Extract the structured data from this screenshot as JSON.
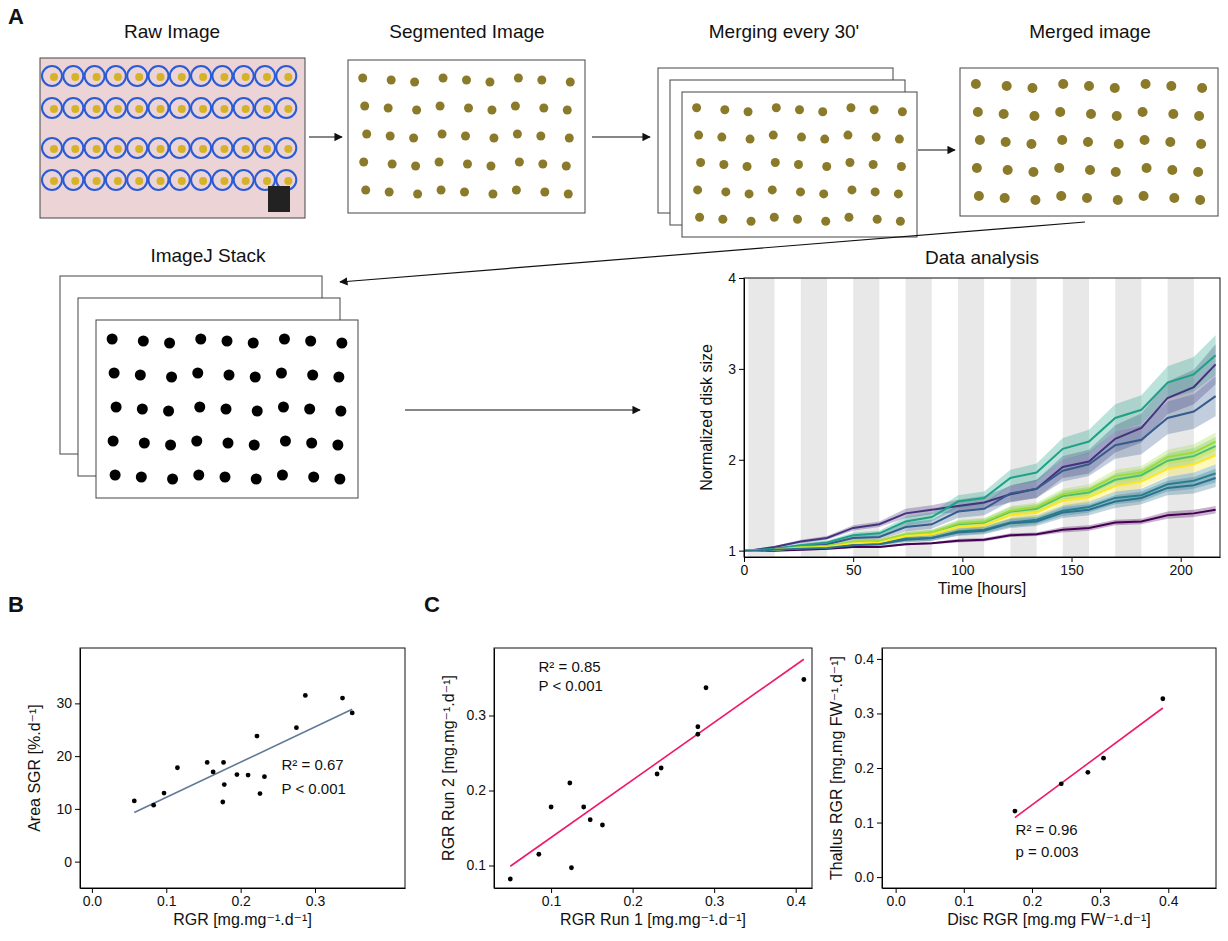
{
  "diagram": {
    "panel_letters": [
      "A",
      "B",
      "C"
    ],
    "steps": [
      "Raw Image",
      "Segmented Image",
      "Merging every 30'",
      "Merged image",
      "ImageJ Stack"
    ]
  },
  "chart_data": [
    {
      "type": "line",
      "title": "Data analysis",
      "x_label": "Time [hours]",
      "y_label": "Normalized disk size",
      "x": [
        0,
        2,
        14,
        26,
        38,
        50,
        62,
        74,
        86,
        98,
        110,
        122,
        134,
        146,
        158,
        170,
        182,
        194,
        206,
        216
      ],
      "shaded_intervals": [
        [
          2,
          14
        ],
        [
          26,
          38
        ],
        [
          50,
          62
        ],
        [
          74,
          86
        ],
        [
          98,
          110
        ],
        [
          122,
          134
        ],
        [
          146,
          158
        ],
        [
          170,
          182
        ],
        [
          194,
          206
        ]
      ],
      "series": [
        {
          "color": "#440154",
          "values": [
            1,
            1,
            1.0,
            1.01,
            1.02,
            1.04,
            1.04,
            1.07,
            1.08,
            1.11,
            1.12,
            1.17,
            1.18,
            1.23,
            1.25,
            1.31,
            1.32,
            1.39,
            1.41,
            1.45
          ],
          "errors": [
            0,
            0,
            0,
            0.01,
            0.01,
            0.01,
            0.01,
            0.01,
            0.01,
            0.02,
            0.02,
            0.02,
            0.02,
            0.03,
            0.03,
            0.03,
            0.03,
            0.04,
            0.04,
            0.04
          ]
        },
        {
          "color": "#46327e",
          "values": [
            1,
            1,
            1.04,
            1.1,
            1.14,
            1.25,
            1.29,
            1.41,
            1.45,
            1.49,
            1.53,
            1.62,
            1.68,
            1.92,
            1.98,
            2.23,
            2.35,
            2.68,
            2.8,
            3.05
          ],
          "errors": [
            0,
            0,
            0.01,
            0.02,
            0.02,
            0.03,
            0.03,
            0.05,
            0.05,
            0.07,
            0.07,
            0.09,
            0.1,
            0.12,
            0.13,
            0.15,
            0.16,
            0.18,
            0.19,
            0.22
          ]
        },
        {
          "color": "#365c8d",
          "values": [
            1,
            1,
            1.02,
            1.05,
            1.07,
            1.14,
            1.15,
            1.26,
            1.29,
            1.43,
            1.46,
            1.63,
            1.68,
            1.88,
            1.95,
            2.16,
            2.22,
            2.46,
            2.53,
            2.7
          ],
          "errors": [
            0,
            0,
            0.01,
            0.02,
            0.02,
            0.03,
            0.03,
            0.05,
            0.05,
            0.07,
            0.07,
            0.09,
            0.1,
            0.12,
            0.13,
            0.15,
            0.16,
            0.18,
            0.19,
            0.22
          ]
        },
        {
          "color": "#277f8e",
          "values": [
            1,
            1,
            1.01,
            1.03,
            1.03,
            1.07,
            1.08,
            1.13,
            1.14,
            1.21,
            1.23,
            1.31,
            1.34,
            1.44,
            1.48,
            1.58,
            1.61,
            1.73,
            1.77,
            1.85
          ],
          "errors": [
            0,
            0,
            0.01,
            0.01,
            0.01,
            0.02,
            0.02,
            0.03,
            0.03,
            0.04,
            0.04,
            0.05,
            0.05,
            0.06,
            0.06,
            0.07,
            0.07,
            0.08,
            0.09,
            0.1
          ]
        },
        {
          "color": "#1fa187",
          "values": [
            1,
            1,
            1.02,
            1.06,
            1.09,
            1.17,
            1.19,
            1.32,
            1.37,
            1.54,
            1.58,
            1.8,
            1.86,
            2.12,
            2.2,
            2.46,
            2.55,
            2.85,
            2.94,
            3.15
          ],
          "errors": [
            0,
            0,
            0.01,
            0.02,
            0.02,
            0.03,
            0.03,
            0.05,
            0.05,
            0.07,
            0.07,
            0.09,
            0.1,
            0.12,
            0.13,
            0.15,
            0.16,
            0.18,
            0.19,
            0.22
          ]
        },
        {
          "color": "#4ac16d",
          "values": [
            1,
            1,
            1.01,
            1.03,
            1.05,
            1.09,
            1.1,
            1.17,
            1.2,
            1.29,
            1.31,
            1.43,
            1.46,
            1.6,
            1.64,
            1.78,
            1.83,
            1.99,
            2.04,
            2.15
          ],
          "errors": [
            0,
            0,
            0.01,
            0.01,
            0.01,
            0.02,
            0.02,
            0.03,
            0.03,
            0.04,
            0.04,
            0.05,
            0.05,
            0.06,
            0.06,
            0.07,
            0.07,
            0.08,
            0.09,
            0.1
          ]
        },
        {
          "color": "#a0da39",
          "values": [
            1,
            1,
            1.01,
            1.04,
            1.05,
            1.1,
            1.11,
            1.18,
            1.2,
            1.3,
            1.32,
            1.44,
            1.48,
            1.62,
            1.67,
            1.82,
            1.86,
            2.03,
            2.08,
            2.2
          ],
          "errors": [
            0,
            0,
            0.01,
            0.01,
            0.01,
            0.02,
            0.02,
            0.03,
            0.03,
            0.04,
            0.04,
            0.05,
            0.05,
            0.06,
            0.06,
            0.07,
            0.07,
            0.08,
            0.09,
            0.1
          ]
        },
        {
          "color": "#fde725",
          "values": [
            1,
            1,
            1.01,
            1.03,
            1.04,
            1.08,
            1.09,
            1.16,
            1.18,
            1.26,
            1.28,
            1.39,
            1.42,
            1.55,
            1.59,
            1.71,
            1.76,
            1.9,
            1.95,
            2.05
          ],
          "errors": [
            0,
            0,
            0.01,
            0.01,
            0.01,
            0.02,
            0.02,
            0.03,
            0.03,
            0.04,
            0.04,
            0.05,
            0.05,
            0.06,
            0.06,
            0.07,
            0.07,
            0.08,
            0.09,
            0.1
          ]
        },
        {
          "color": "#2c728e",
          "values": [
            1,
            1,
            1.01,
            1.02,
            1.03,
            1.06,
            1.07,
            1.12,
            1.14,
            1.2,
            1.22,
            1.3,
            1.32,
            1.42,
            1.45,
            1.54,
            1.58,
            1.69,
            1.72,
            1.8
          ],
          "errors": [
            0,
            0,
            0.01,
            0.01,
            0.01,
            0.02,
            0.02,
            0.03,
            0.03,
            0.04,
            0.04,
            0.05,
            0.05,
            0.06,
            0.06,
            0.07,
            0.07,
            0.08,
            0.09,
            0.1
          ]
        }
      ],
      "xlim": [
        0,
        218
      ],
      "xticks": [
        0,
        50,
        100,
        150,
        200
      ],
      "ylim": [
        0.93,
        4
      ],
      "yticks": [
        1,
        2,
        3,
        4
      ]
    },
    {
      "type": "scatter",
      "x_label": "RGR [mg.mg⁻¹.d⁻¹]",
      "y_label": "Area SGR [%.d⁻¹]",
      "annotations": [
        "R² = 0.67",
        "P < 0.001"
      ],
      "series": [
        {
          "type": "scatter",
          "color": "#000000",
          "x": [
            0.057,
            0.083,
            0.097,
            0.115,
            0.155,
            0.163,
            0.177,
            0.178,
            0.176,
            0.195,
            0.21,
            0.226,
            0.222,
            0.232,
            0.275,
            0.287,
            0.337,
            0.35
          ],
          "values": [
            11.5,
            10.7,
            13,
            17.8,
            18.8,
            17,
            18.8,
            14.6,
            11.3,
            16.5,
            16.4,
            12.9,
            23.8,
            16.1,
            25.4,
            31.5,
            31,
            28.2
          ]
        },
        {
          "type": "line",
          "color": "#5f7a96",
          "x": [
            0.057,
            0.35
          ],
          "values": [
            9.3,
            28.9
          ]
        }
      ],
      "xlim": [
        -0.016,
        0.421
      ],
      "xticks": [
        {
          "value": 0,
          "label": "0.0"
        },
        0.1,
        0.2,
        0.3
      ],
      "ylim": [
        -5,
        40.5
      ],
      "yticks": [
        0,
        10,
        20,
        30
      ]
    },
    {
      "type": "scatter",
      "x_label": "RGR Run 1 [mg.mg⁻¹.d⁻¹]",
      "y_label": "RGR Run 2 [mg.mg⁻¹.d⁻¹]",
      "annotations": [
        "R² = 0.85",
        "P < 0.001"
      ],
      "series": [
        {
          "type": "scatter",
          "color": "#000000",
          "x": [
            0.05,
            0.085,
            0.1,
            0.123,
            0.125,
            0.14,
            0.148,
            0.163,
            0.23,
            0.235,
            0.28,
            0.28,
            0.29,
            0.41
          ],
          "values": [
            0.082,
            0.115,
            0.178,
            0.21,
            0.097,
            0.178,
            0.161,
            0.154,
            0.222,
            0.23,
            0.275,
            0.285,
            0.337,
            0.348
          ]
        },
        {
          "type": "line",
          "color": "#f0186a",
          "x": [
            0.05,
            0.41
          ],
          "values": [
            0.099,
            0.375
          ]
        }
      ],
      "xlim": [
        0.03,
        0.42
      ],
      "xticks": [
        0.1,
        0.2,
        0.3,
        0.4
      ],
      "ylim": [
        0.07,
        0.39
      ],
      "yticks": [
        0.1,
        0.2,
        0.3
      ]
    },
    {
      "type": "scatter",
      "x_label": "Disc RGR [mg.mg FW⁻¹.d⁻¹]",
      "y_label": "Thallus RGR [mg.mg FW⁻¹.d⁻¹]",
      "annotations": [
        "R² = 0.96",
        "p = 0.003"
      ],
      "series": [
        {
          "type": "scatter",
          "color": "#000000",
          "x": [
            0.175,
            0.243,
            0.282,
            0.305,
            0.392
          ],
          "values": [
            0.121,
            0.171,
            0.192,
            0.218,
            0.327
          ]
        },
        {
          "type": "line",
          "color": "#f0186a",
          "x": [
            0.175,
            0.392
          ],
          "values": [
            0.109,
            0.31
          ]
        }
      ],
      "xlim": [
        -0.02,
        0.47
      ],
      "xticks": [
        {
          "value": 0,
          "label": "0.0"
        },
        0.1,
        0.2,
        0.3,
        0.4
      ],
      "ylim": [
        -0.02,
        0.42
      ],
      "yticks": [
        {
          "value": 0,
          "label": "0.0"
        },
        0.1,
        0.2,
        0.3,
        0.4
      ]
    }
  ]
}
